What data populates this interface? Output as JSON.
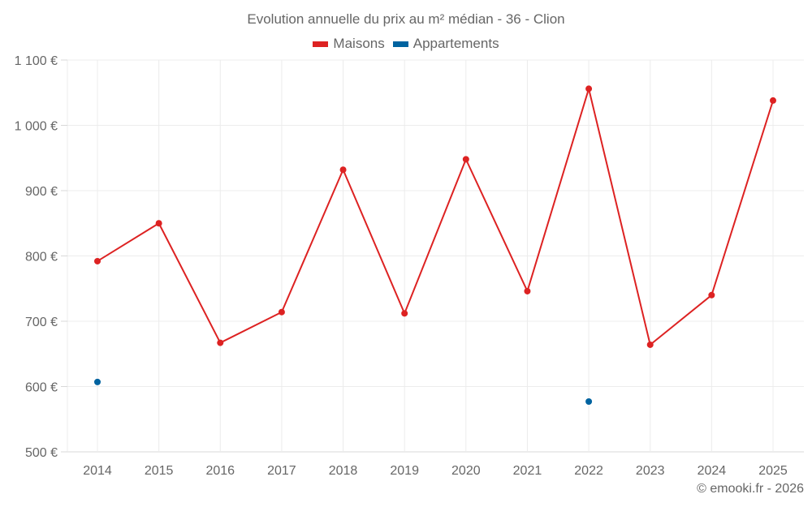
{
  "title": "Evolution annuelle du prix au m² médian - 36 - Clion",
  "legend": [
    {
      "label": "Maisons",
      "color": "#dd2222"
    },
    {
      "label": "Appartements",
      "color": "#0063a0"
    }
  ],
  "credit": "© emooki.fr - 2026",
  "chart_data": {
    "type": "line",
    "title": "Evolution annuelle du prix au m² médian - 36 - Clion",
    "xlabel": "",
    "ylabel": "",
    "categories": [
      "2014",
      "2015",
      "2016",
      "2017",
      "2018",
      "2019",
      "2020",
      "2021",
      "2022",
      "2023",
      "2024",
      "2025"
    ],
    "series": [
      {
        "name": "Maisons",
        "color": "#dd2222",
        "values": [
          792,
          850,
          667,
          714,
          932,
          712,
          948,
          746,
          1056,
          664,
          740,
          1038
        ]
      },
      {
        "name": "Appartements",
        "color": "#0063a0",
        "values": [
          607,
          null,
          null,
          null,
          null,
          null,
          null,
          null,
          577,
          null,
          null,
          null
        ]
      }
    ],
    "ylim": [
      500,
      1100
    ],
    "yticks": [
      500,
      600,
      700,
      800,
      900,
      1000,
      1100
    ],
    "ytick_labels": [
      "500 €",
      "600 €",
      "700 €",
      "800 €",
      "900 €",
      "1 000 €",
      "1 100 €"
    ],
    "grid": true,
    "legend_position": "top"
  }
}
